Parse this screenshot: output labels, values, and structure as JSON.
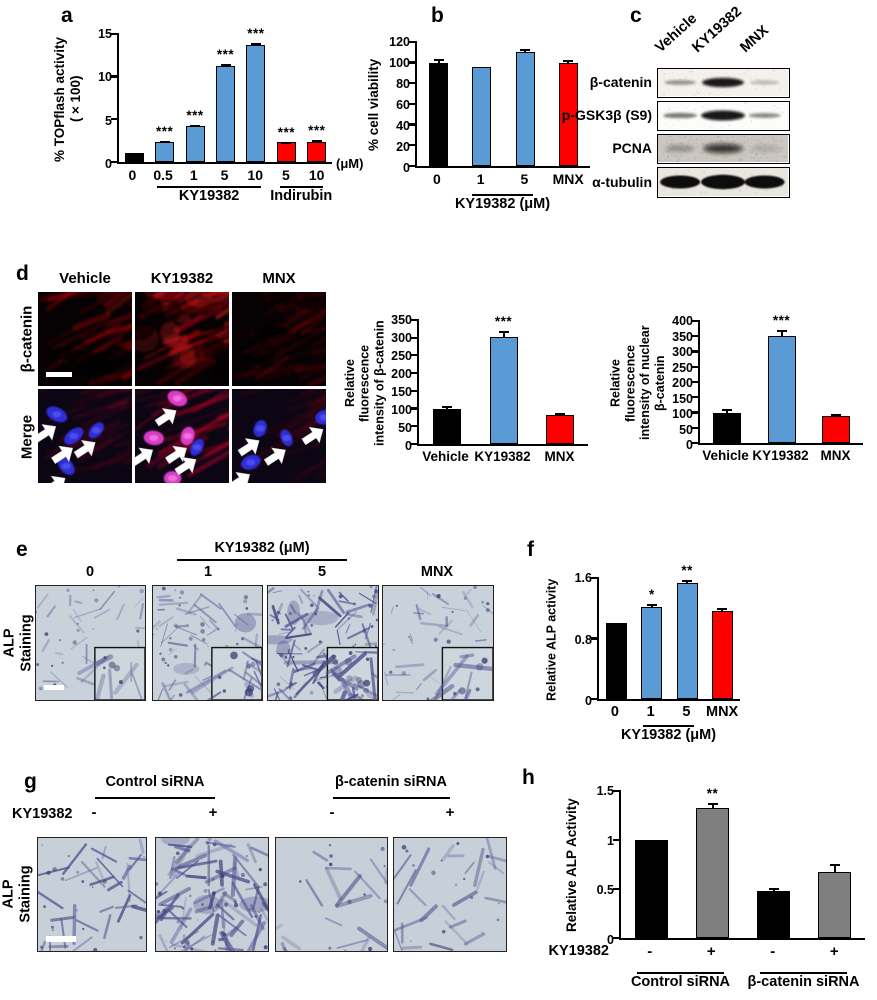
{
  "colors": {
    "blue": "#5B9BD5",
    "red": "#FF0000",
    "black": "#000000",
    "grey": "#7F7F7F"
  },
  "panels": {
    "a": "a",
    "b": "b",
    "c": "c",
    "d": "d",
    "e": "e",
    "f": "f",
    "g": "g",
    "h": "h"
  },
  "chart_data": [
    {
      "id": "topflash",
      "type": "bar",
      "ylabel_lines": [
        "% TOPflash activity",
        "(×100)"
      ],
      "ylim": [
        0,
        15
      ],
      "yticks": [
        "0",
        "5",
        "10",
        "15"
      ],
      "categories": [
        "0",
        "0.5",
        "1",
        "5",
        "10",
        "5",
        "10"
      ],
      "values": [
        1.1,
        2.4,
        4.2,
        11.3,
        13.7,
        2.3,
        2.4
      ],
      "errors": [
        0,
        0.06,
        0.1,
        0.15,
        0.2,
        0.1,
        0.15
      ],
      "sig": [
        "",
        "***",
        "***",
        "***",
        "***",
        "***",
        "***"
      ],
      "bar_colors": [
        "black",
        "blue",
        "blue",
        "blue",
        "blue",
        "red",
        "red"
      ],
      "groups": [
        {
          "label": "KY19382",
          "from": 1,
          "to": 4
        },
        {
          "label": "Indirubin",
          "from": 5,
          "to": 6
        }
      ],
      "unit_label": "(μM)"
    },
    {
      "id": "cell_viability",
      "type": "bar",
      "ylabel_lines": [
        "% cell viability"
      ],
      "ylim": [
        0,
        120
      ],
      "yticks": [
        "0",
        "20",
        "40",
        "60",
        "80",
        "100",
        "120"
      ],
      "categories": [
        "0",
        "1",
        "5",
        "MNX"
      ],
      "values": [
        100,
        96,
        110,
        100
      ],
      "errors": [
        4,
        0,
        3,
        3
      ],
      "sig": [
        "",
        "",
        "",
        ""
      ],
      "bar_colors": [
        "black",
        "blue",
        "blue",
        "red"
      ],
      "groups": [
        {
          "label": "KY19382 (μM)",
          "from": 1,
          "to": 2
        }
      ]
    },
    {
      "id": "fluorescence_beta_catenin",
      "type": "bar",
      "ylabel_lines": [
        "Relative fluorescence",
        "intensity of β-catenin"
      ],
      "ylim": [
        0,
        350
      ],
      "yticks": [
        "0",
        "50",
        "100",
        "150",
        "200",
        "250",
        "300",
        "350"
      ],
      "categories": [
        "Vehicle",
        "KY19382",
        "MNX"
      ],
      "values": [
        100,
        303,
        83
      ],
      "errors": [
        8,
        15,
        5
      ],
      "sig": [
        "",
        "***",
        ""
      ],
      "bar_colors": [
        "black",
        "blue",
        "red"
      ]
    },
    {
      "id": "fluorescence_nuclear_beta_catenin",
      "type": "bar",
      "ylabel_lines": [
        "Relative fluorescence",
        "intensity of nuclear",
        "β-catenin"
      ],
      "ylim": [
        0,
        400
      ],
      "yticks": [
        "0",
        "50",
        "100",
        "150",
        "200",
        "250",
        "300",
        "350",
        "400"
      ],
      "categories": [
        "Vehicle",
        "KY19382",
        "MNX"
      ],
      "values": [
        100,
        350,
        87
      ],
      "errors": [
        10,
        22,
        7
      ],
      "sig": [
        "",
        "***",
        ""
      ],
      "bar_colors": [
        "black",
        "blue",
        "red"
      ]
    },
    {
      "id": "relative_alp_activity_dose",
      "type": "bar",
      "ylabel_lines": [
        "Relative ALP activity"
      ],
      "ylim": [
        0,
        1.6
      ],
      "yticks": [
        "0",
        "0.8",
        "1.6"
      ],
      "categories": [
        "0",
        "1",
        "5",
        "MNX"
      ],
      "values": [
        1.0,
        1.22,
        1.53,
        1.16
      ],
      "errors": [
        0,
        0.04,
        0.05,
        0.05
      ],
      "sig": [
        "",
        "*",
        "**",
        ""
      ],
      "bar_colors": [
        "black",
        "blue",
        "blue",
        "red"
      ],
      "groups": [
        {
          "label": "KY19382 (μM)",
          "from": 1,
          "to": 2
        }
      ]
    },
    {
      "id": "relative_alp_activity_sirna",
      "type": "bar",
      "ylabel_lines": [
        "Relative ALP Activity"
      ],
      "ylim": [
        0,
        1.5
      ],
      "yticks": [
        "0",
        "0.5",
        "1",
        "1.5"
      ],
      "categories": [
        "-",
        "+",
        "-",
        "+"
      ],
      "values": [
        1.0,
        1.33,
        0.48,
        0.67
      ],
      "errors": [
        0,
        0.05,
        0.03,
        0.09
      ],
      "sig": [
        "",
        "**",
        "",
        ""
      ],
      "bar_colors": [
        "black",
        "grey",
        "black",
        "grey"
      ],
      "xprefix": "KY19382",
      "groups": [
        {
          "label": "Control siRNA",
          "from": 0,
          "to": 1
        },
        {
          "label": "β-catenin siRNA",
          "from": 2,
          "to": 3
        }
      ]
    }
  ],
  "western_blot": {
    "lane_headers": [
      "Vehicle",
      "KY19382",
      "MNX"
    ],
    "rows": [
      {
        "label": "β-catenin",
        "band_intensity": [
          0.55,
          1.0,
          0.4
        ]
      },
      {
        "label": "p-GSK3β (S9)",
        "band_intensity": [
          0.65,
          1.0,
          0.6
        ]
      },
      {
        "label": "PCNA",
        "band_intensity": [
          0.5,
          0.85,
          0.35
        ]
      },
      {
        "label": "α-tubulin",
        "band_intensity": [
          1.0,
          1.0,
          1.0
        ]
      }
    ]
  },
  "immunofluorescence": {
    "column_headers": [
      "Vehicle",
      "KY19382",
      "MNX"
    ],
    "row_labels": [
      "β-catenin",
      "Merge"
    ]
  },
  "alp_dose": {
    "group_header": "KY19382 (μM)",
    "column_labels": [
      "0",
      "1",
      "5",
      "MNX"
    ],
    "row_label_lines": [
      "ALP",
      "Staining"
    ]
  },
  "alp_sirna": {
    "group_headers": [
      "Control siRNA",
      "β-catenin siRNA"
    ],
    "treatment_label": "KY19382",
    "treatment_values": [
      "-",
      "+",
      "-",
      "+"
    ],
    "row_label_lines": [
      "ALP",
      "Staining"
    ]
  }
}
